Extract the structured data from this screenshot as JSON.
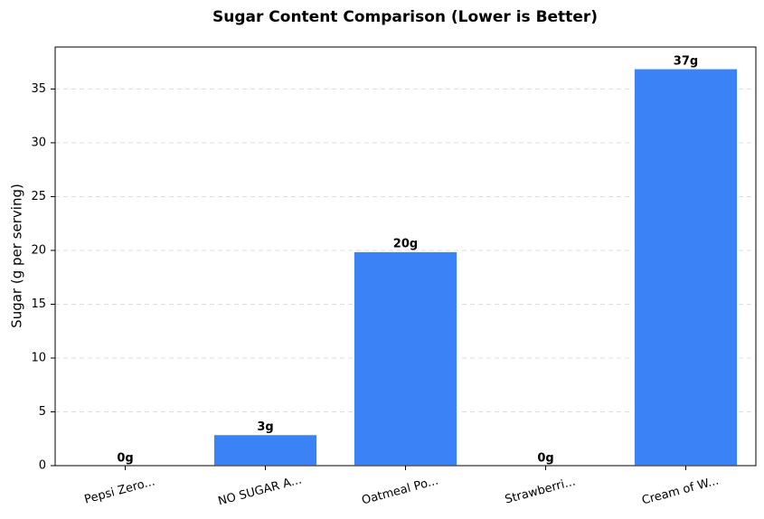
{
  "chart_data": {
    "type": "bar",
    "title": "Sugar Content Comparison (Lower is Better)",
    "y_label": "Sugar (g per serving)",
    "categories": [
      "Pepsi Zero...",
      "NO SUGAR A...",
      "Oatmeal Po...",
      "Strawberri...",
      "Cream of W..."
    ],
    "values": [
      0,
      2.9,
      19.9,
      0,
      36.9
    ],
    "value_labels": [
      "0g",
      "3g",
      "20g",
      "0g",
      "37g"
    ],
    "color": "#3b82f6",
    "ylim": [
      0,
      38.9
    ],
    "yticks": [
      0,
      5,
      10,
      15,
      20,
      25,
      30,
      35
    ],
    "grid": true
  }
}
